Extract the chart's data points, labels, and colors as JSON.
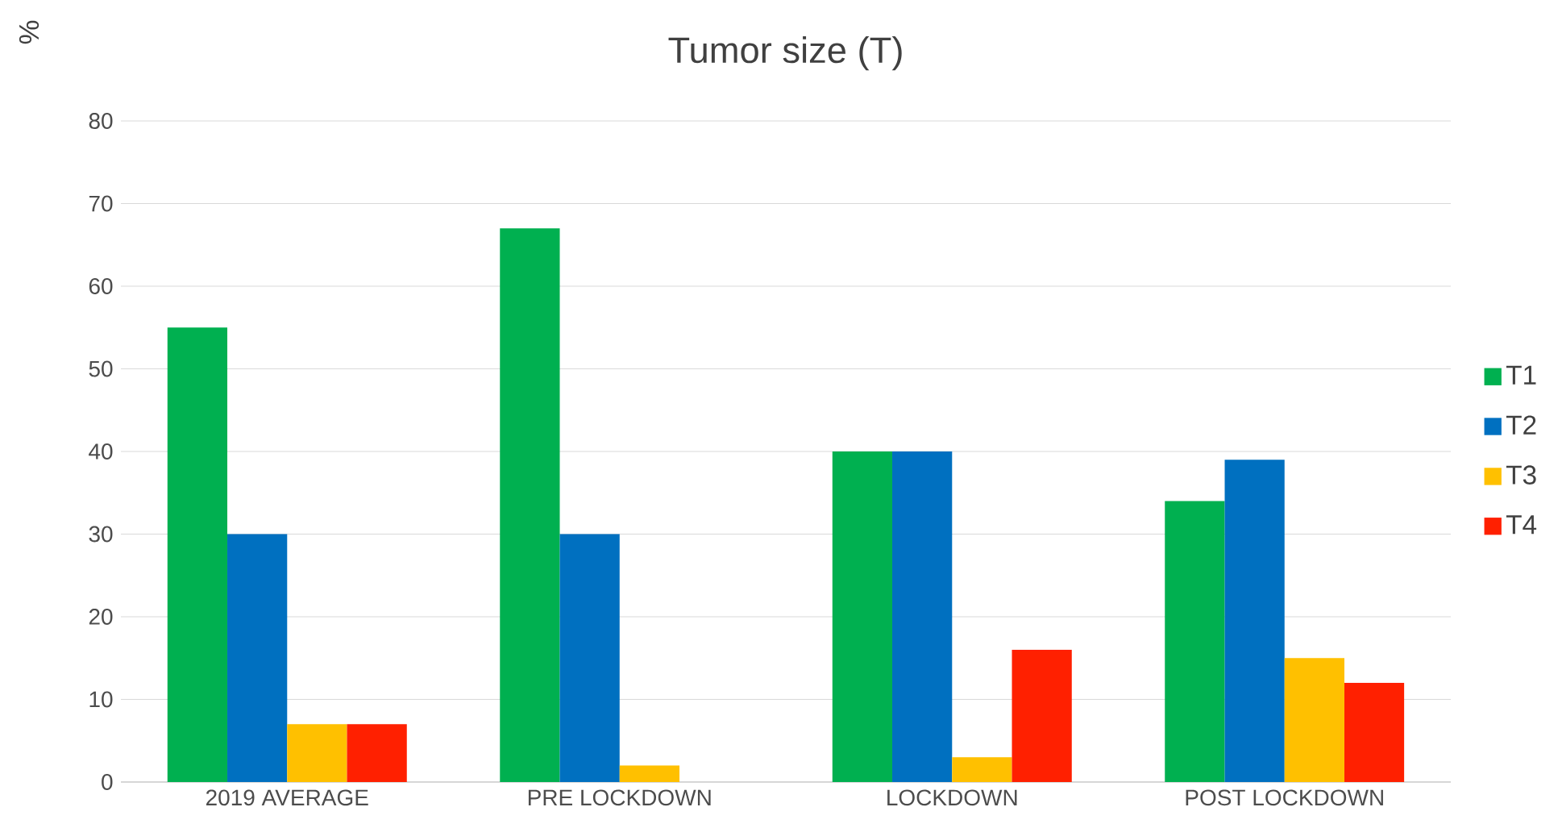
{
  "chart_data": {
    "type": "bar",
    "title": "Tumor size (T)",
    "ylabel": "%",
    "categories": [
      "2019 AVERAGE",
      "PRE LOCKDOWN",
      "LOCKDOWN",
      "POST LOCKDOWN"
    ],
    "series": [
      {
        "name": "T1",
        "color": "#00b050",
        "values": [
          55,
          67,
          40,
          34
        ]
      },
      {
        "name": "T2",
        "color": "#0070c0",
        "values": [
          30,
          30,
          40,
          39
        ]
      },
      {
        "name": "T3",
        "color": "#ffc000",
        "values": [
          7,
          2,
          3,
          15
        ]
      },
      {
        "name": "T4",
        "color": "#ff2000",
        "values": [
          7,
          0,
          16,
          12
        ]
      }
    ],
    "ylim": [
      0,
      80
    ],
    "yticks": [
      0,
      10,
      20,
      30,
      40,
      50,
      60,
      70,
      80
    ],
    "grid": "y",
    "legend": "right"
  }
}
